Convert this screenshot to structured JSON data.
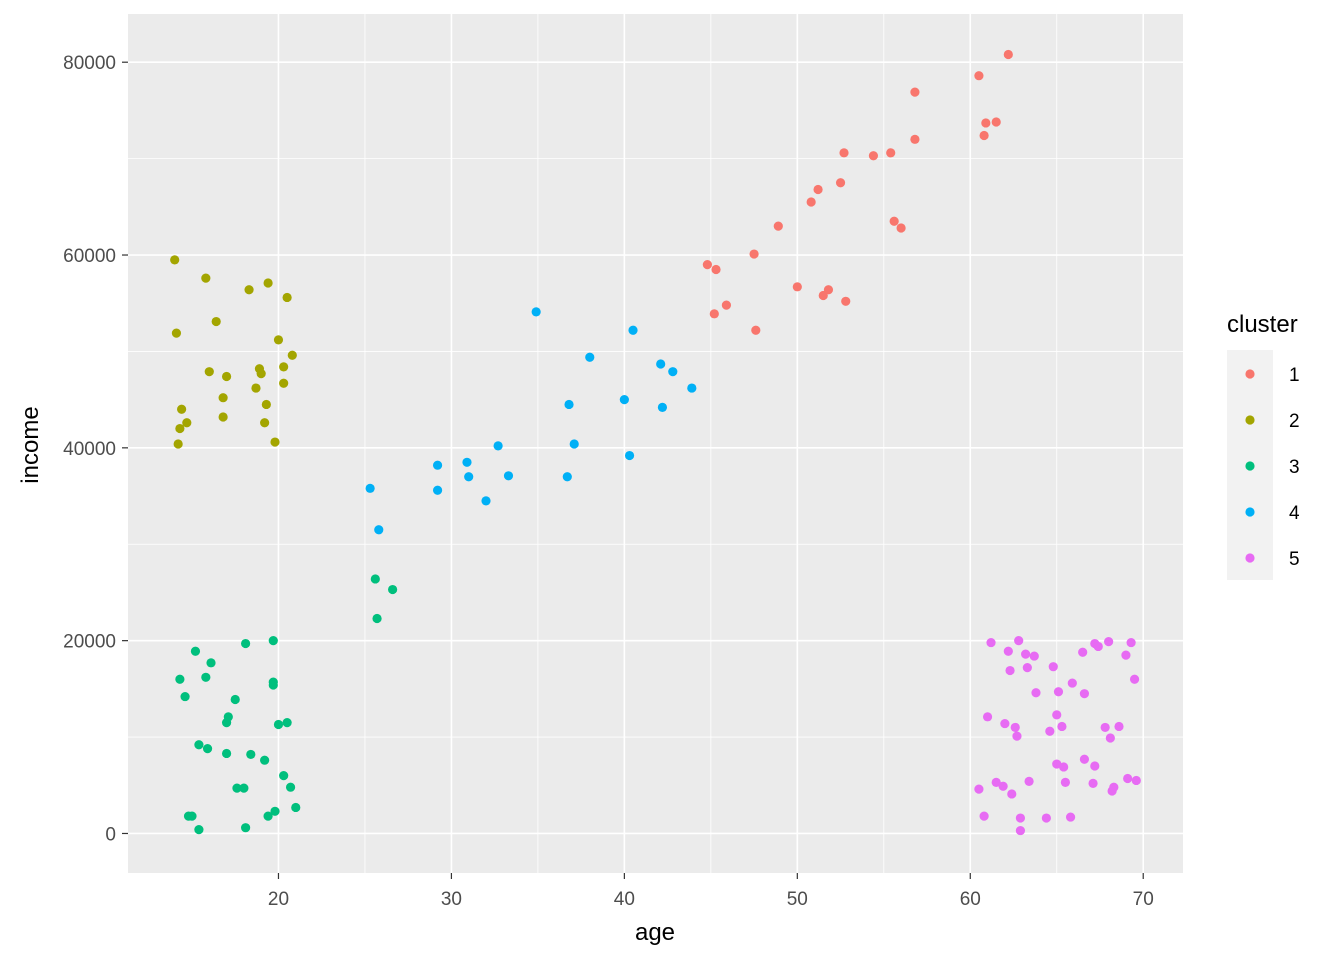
{
  "chart_data": {
    "type": "scatter",
    "xlabel": "age",
    "ylabel": "income",
    "xlim": [
      11.3,
      72.3
    ],
    "ylim": [
      -4100,
      85000
    ],
    "x_ticks": [
      20,
      30,
      40,
      50,
      60,
      70
    ],
    "y_ticks": [
      0,
      20000,
      40000,
      60000,
      80000
    ],
    "x_tick_labels": [
      "20",
      "30",
      "40",
      "50",
      "60",
      "70"
    ],
    "y_tick_labels": [
      "0",
      "20000",
      "40000",
      "60000",
      "80000"
    ],
    "grid": true,
    "background": "#ebebeb",
    "legend": {
      "title": "cluster",
      "position": "right",
      "entries": [
        {
          "label": "1",
          "color": "#f8766d"
        },
        {
          "label": "2",
          "color": "#a3a500"
        },
        {
          "label": "3",
          "color": "#00bf7d"
        },
        {
          "label": "4",
          "color": "#00b0f6"
        },
        {
          "label": "5",
          "color": "#e76bf3"
        }
      ]
    },
    "series": [
      {
        "name": "1",
        "color": "#f8766d",
        "points": [
          [
            44.8,
            59000
          ],
          [
            45.3,
            58500
          ],
          [
            45.2,
            53900
          ],
          [
            45.9,
            54800
          ],
          [
            47.5,
            60100
          ],
          [
            47.6,
            52200
          ],
          [
            48.9,
            63000
          ],
          [
            50.0,
            56700
          ],
          [
            50.8,
            65500
          ],
          [
            51.2,
            66800
          ],
          [
            51.5,
            55800
          ],
          [
            51.8,
            56400
          ],
          [
            52.5,
            67500
          ],
          [
            52.7,
            70600
          ],
          [
            52.8,
            55200
          ],
          [
            54.4,
            70300
          ],
          [
            55.4,
            70600
          ],
          [
            55.6,
            63500
          ],
          [
            56.0,
            62800
          ],
          [
            56.8,
            76900
          ],
          [
            56.8,
            72000
          ],
          [
            60.5,
            78600
          ],
          [
            60.8,
            72400
          ],
          [
            60.9,
            73700
          ],
          [
            61.5,
            73800
          ],
          [
            62.2,
            80800
          ]
        ]
      },
      {
        "name": "2",
        "color": "#a3a500",
        "points": [
          [
            14.0,
            59500
          ],
          [
            14.1,
            51900
          ],
          [
            14.2,
            40400
          ],
          [
            14.3,
            42000
          ],
          [
            14.4,
            44000
          ],
          [
            14.7,
            42600
          ],
          [
            15.8,
            57600
          ],
          [
            16.0,
            47900
          ],
          [
            16.4,
            53100
          ],
          [
            16.8,
            43200
          ],
          [
            16.8,
            45200
          ],
          [
            17.0,
            47400
          ],
          [
            18.3,
            56400
          ],
          [
            18.7,
            46200
          ],
          [
            18.9,
            48200
          ],
          [
            19.0,
            47700
          ],
          [
            19.2,
            42600
          ],
          [
            19.3,
            44500
          ],
          [
            19.4,
            57100
          ],
          [
            19.8,
            40600
          ],
          [
            20.0,
            51200
          ],
          [
            20.3,
            48400
          ],
          [
            20.3,
            46700
          ],
          [
            20.5,
            55600
          ],
          [
            20.8,
            49600
          ]
        ]
      },
      {
        "name": "3",
        "color": "#00bf7d",
        "points": [
          [
            14.3,
            16000
          ],
          [
            14.6,
            14200
          ],
          [
            14.8,
            1800
          ],
          [
            15.0,
            1800
          ],
          [
            15.2,
            18900
          ],
          [
            15.4,
            9200
          ],
          [
            15.4,
            400
          ],
          [
            15.8,
            16200
          ],
          [
            15.9,
            8800
          ],
          [
            16.1,
            17700
          ],
          [
            17.0,
            8300
          ],
          [
            17.0,
            11500
          ],
          [
            17.1,
            12100
          ],
          [
            17.5,
            13900
          ],
          [
            17.6,
            4700
          ],
          [
            18.0,
            4700
          ],
          [
            18.1,
            19700
          ],
          [
            18.1,
            600
          ],
          [
            18.4,
            8200
          ],
          [
            19.2,
            7600
          ],
          [
            19.4,
            1800
          ],
          [
            19.7,
            20000
          ],
          [
            19.7,
            15700
          ],
          [
            19.7,
            15400
          ],
          [
            19.8,
            2300
          ],
          [
            20.0,
            11300
          ],
          [
            20.3,
            6000
          ],
          [
            20.5,
            11500
          ],
          [
            20.7,
            4800
          ],
          [
            21.0,
            2700
          ],
          [
            25.6,
            26400
          ],
          [
            25.7,
            22300
          ],
          [
            26.6,
            25300
          ]
        ]
      },
      {
        "name": "4",
        "color": "#00b0f6",
        "points": [
          [
            25.3,
            35800
          ],
          [
            25.8,
            31500
          ],
          [
            29.2,
            38200
          ],
          [
            29.2,
            35600
          ],
          [
            30.9,
            38500
          ],
          [
            31.0,
            37000
          ],
          [
            32.0,
            34500
          ],
          [
            32.7,
            40200
          ],
          [
            33.3,
            37100
          ],
          [
            34.9,
            54100
          ],
          [
            36.7,
            37000
          ],
          [
            36.8,
            44500
          ],
          [
            37.1,
            40400
          ],
          [
            38.0,
            49400
          ],
          [
            40.0,
            45000
          ],
          [
            40.3,
            39200
          ],
          [
            40.5,
            52200
          ],
          [
            42.1,
            48700
          ],
          [
            42.2,
            44200
          ],
          [
            42.8,
            47900
          ],
          [
            43.9,
            46200
          ]
        ]
      },
      {
        "name": "5",
        "color": "#e76bf3",
        "points": [
          [
            60.5,
            4600
          ],
          [
            60.8,
            1800
          ],
          [
            61.0,
            12100
          ],
          [
            61.2,
            19800
          ],
          [
            61.5,
            5300
          ],
          [
            61.9,
            4900
          ],
          [
            62.0,
            11400
          ],
          [
            62.2,
            18900
          ],
          [
            62.3,
            16900
          ],
          [
            62.4,
            4100
          ],
          [
            62.6,
            11000
          ],
          [
            62.7,
            10100
          ],
          [
            62.8,
            20000
          ],
          [
            62.9,
            300
          ],
          [
            62.9,
            1600
          ],
          [
            63.2,
            18600
          ],
          [
            63.3,
            17200
          ],
          [
            63.4,
            5400
          ],
          [
            63.7,
            18400
          ],
          [
            63.8,
            14600
          ],
          [
            64.4,
            1600
          ],
          [
            64.6,
            10600
          ],
          [
            64.8,
            17300
          ],
          [
            65.0,
            12300
          ],
          [
            65.0,
            7200
          ],
          [
            65.1,
            14700
          ],
          [
            65.3,
            11100
          ],
          [
            65.4,
            6900
          ],
          [
            65.5,
            5300
          ],
          [
            65.8,
            1700
          ],
          [
            65.9,
            15600
          ],
          [
            66.5,
            18800
          ],
          [
            66.6,
            14500
          ],
          [
            66.6,
            7700
          ],
          [
            67.1,
            5200
          ],
          [
            67.2,
            7000
          ],
          [
            67.2,
            19700
          ],
          [
            67.4,
            19400
          ],
          [
            67.8,
            11000
          ],
          [
            68.0,
            19900
          ],
          [
            68.1,
            9900
          ],
          [
            68.2,
            4400
          ],
          [
            68.3,
            4800
          ],
          [
            68.6,
            11100
          ],
          [
            69.0,
            18500
          ],
          [
            69.1,
            5700
          ],
          [
            69.3,
            19800
          ],
          [
            69.5,
            16000
          ],
          [
            69.6,
            5500
          ]
        ]
      }
    ]
  }
}
